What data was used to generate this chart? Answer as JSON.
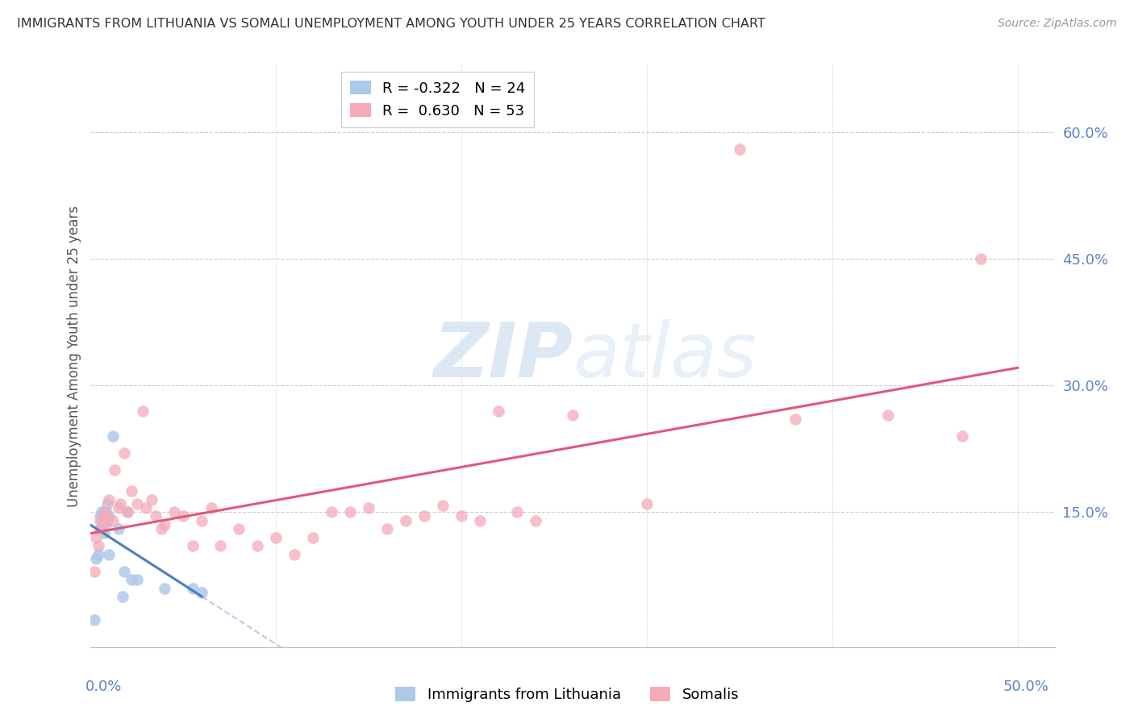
{
  "title": "IMMIGRANTS FROM LITHUANIA VS SOMALI UNEMPLOYMENT AMONG YOUTH UNDER 25 YEARS CORRELATION CHART",
  "source": "Source: ZipAtlas.com",
  "ylabel": "Unemployment Among Youth under 25 years",
  "yticks": [
    0.0,
    0.15,
    0.3,
    0.45,
    0.6
  ],
  "ytick_labels": [
    "",
    "15.0%",
    "30.0%",
    "45.0%",
    "60.0%"
  ],
  "xlim": [
    0.0,
    0.52
  ],
  "ylim": [
    -0.01,
    0.68
  ],
  "legend_r_blue": "-0.322",
  "legend_n_blue": "24",
  "legend_r_pink": "0.630",
  "legend_n_pink": "53",
  "blue_color": "#adc9e8",
  "pink_color": "#f5aab8",
  "blue_line_color": "#4a7fc0",
  "pink_line_color": "#e05878",
  "blue_dashed_color": "#8aadd4",
  "axis_label_color": "#5b82cc",
  "watermark_color": "#cfdff0",
  "blue_x": [
    0.002,
    0.003,
    0.004,
    0.005,
    0.005,
    0.006,
    0.006,
    0.007,
    0.007,
    0.008,
    0.008,
    0.009,
    0.01,
    0.01,
    0.012,
    0.015,
    0.017,
    0.018,
    0.02,
    0.022,
    0.025,
    0.04,
    0.055,
    0.06
  ],
  "blue_y": [
    0.022,
    0.095,
    0.1,
    0.13,
    0.145,
    0.15,
    0.14,
    0.14,
    0.125,
    0.135,
    0.15,
    0.16,
    0.145,
    0.1,
    0.24,
    0.13,
    0.05,
    0.08,
    0.15,
    0.07,
    0.07,
    0.06,
    0.06,
    0.055
  ],
  "pink_x": [
    0.002,
    0.003,
    0.004,
    0.005,
    0.006,
    0.007,
    0.008,
    0.009,
    0.01,
    0.012,
    0.013,
    0.015,
    0.016,
    0.018,
    0.02,
    0.022,
    0.025,
    0.028,
    0.03,
    0.033,
    0.035,
    0.038,
    0.04,
    0.045,
    0.05,
    0.055,
    0.06,
    0.065,
    0.07,
    0.08,
    0.09,
    0.1,
    0.11,
    0.12,
    0.13,
    0.14,
    0.15,
    0.16,
    0.17,
    0.18,
    0.19,
    0.2,
    0.21,
    0.22,
    0.23,
    0.24,
    0.26,
    0.3,
    0.35,
    0.38,
    0.43,
    0.47,
    0.48
  ],
  "pink_y": [
    0.08,
    0.12,
    0.11,
    0.14,
    0.13,
    0.145,
    0.15,
    0.14,
    0.165,
    0.14,
    0.2,
    0.155,
    0.16,
    0.22,
    0.15,
    0.175,
    0.16,
    0.27,
    0.155,
    0.165,
    0.145,
    0.13,
    0.135,
    0.15,
    0.145,
    0.11,
    0.14,
    0.155,
    0.11,
    0.13,
    0.11,
    0.12,
    0.1,
    0.12,
    0.15,
    0.15,
    0.155,
    0.13,
    0.14,
    0.145,
    0.158,
    0.145,
    0.14,
    0.27,
    0.15,
    0.14,
    0.265,
    0.16,
    0.58,
    0.26,
    0.265,
    0.24,
    0.45
  ]
}
